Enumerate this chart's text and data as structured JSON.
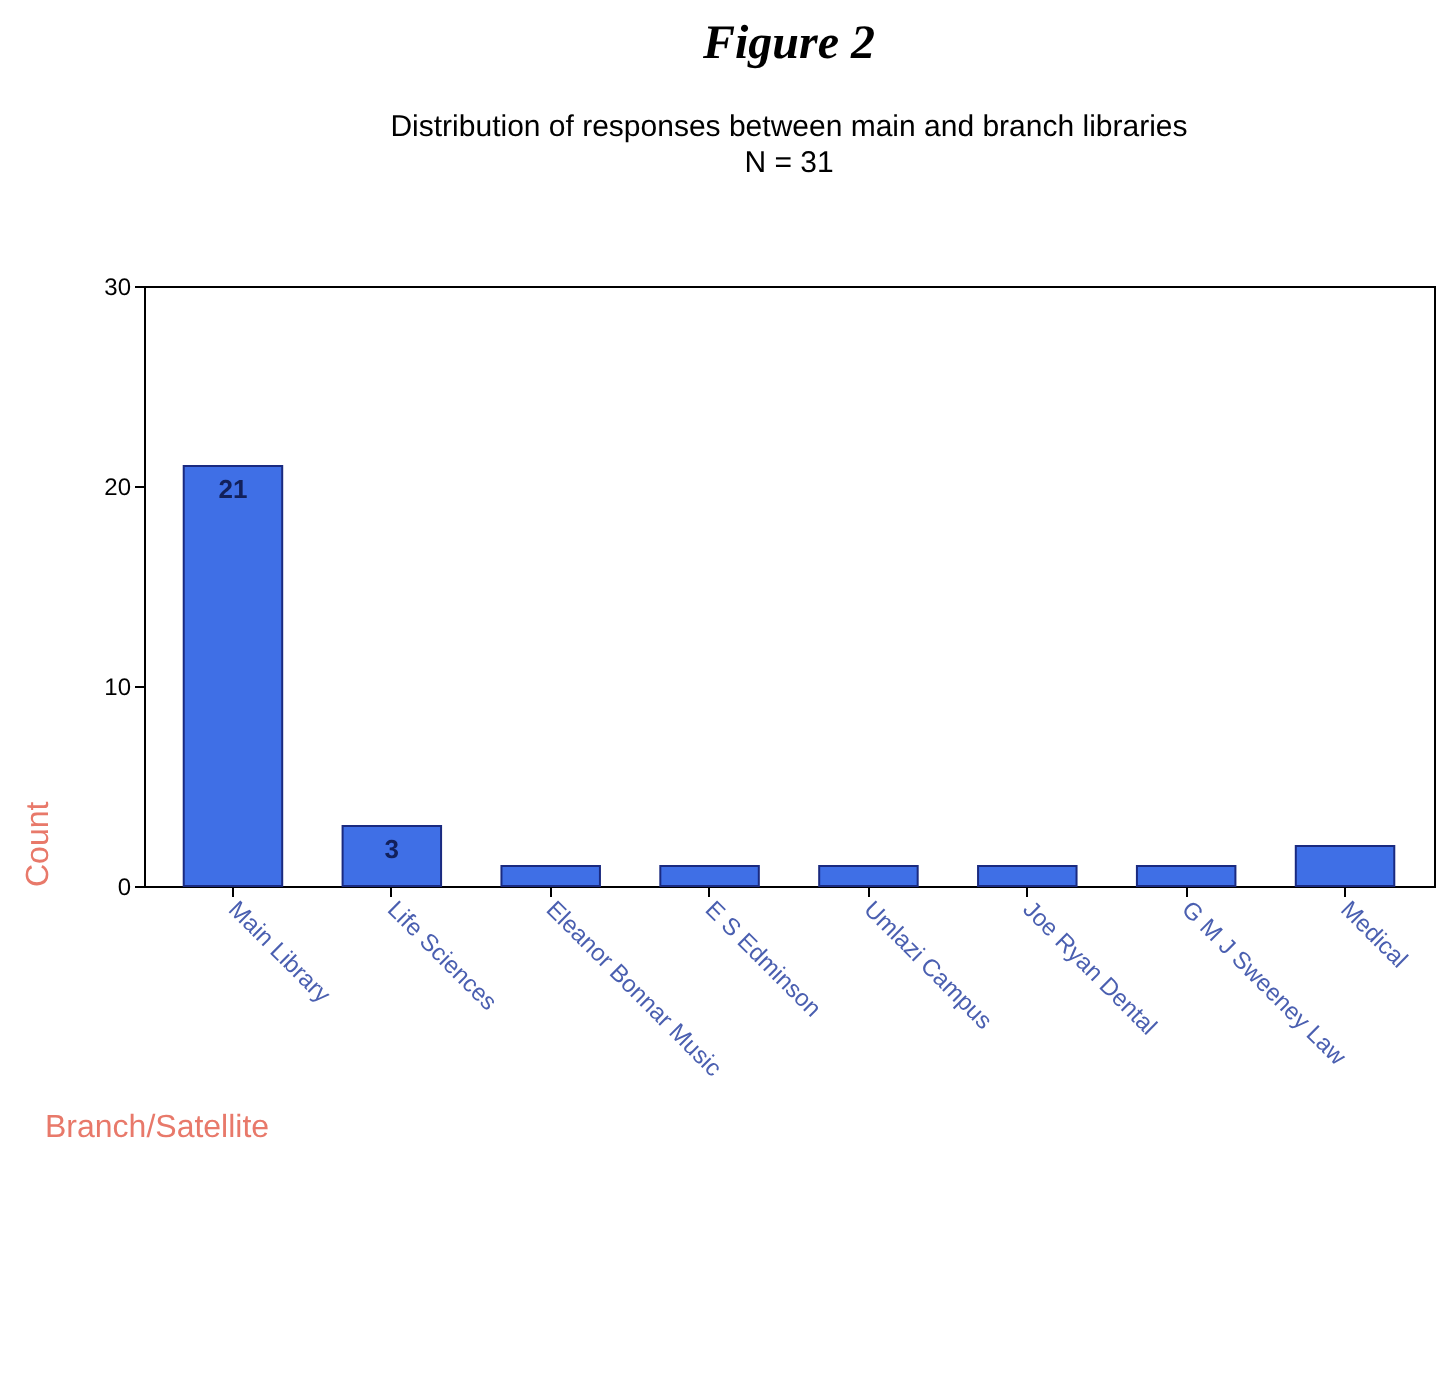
{
  "chart_data": {
    "type": "bar",
    "title": "Figure 2",
    "subtitle": "Distribution of responses between main and branch libraries",
    "annotations": [
      "N = 31"
    ],
    "xlabel": "Branch/Satellite",
    "ylabel": "Count",
    "categories": [
      "Main Library",
      "Life Sciences",
      "Eleanor Bonnar Music",
      "E S Edminson",
      "Umlazi Campus",
      "Joe Ryan Dental",
      "G M J Sweeney Law",
      "Medical"
    ],
    "values": [
      21,
      3,
      1,
      1,
      1,
      1,
      1,
      2
    ],
    "value_labels": [
      "21",
      "3",
      null,
      null,
      null,
      null,
      null,
      null
    ],
    "color": "#3f6fe6",
    "ylim": [
      0,
      30
    ],
    "yticks": [
      0,
      10,
      20,
      30
    ],
    "grid": false
  }
}
